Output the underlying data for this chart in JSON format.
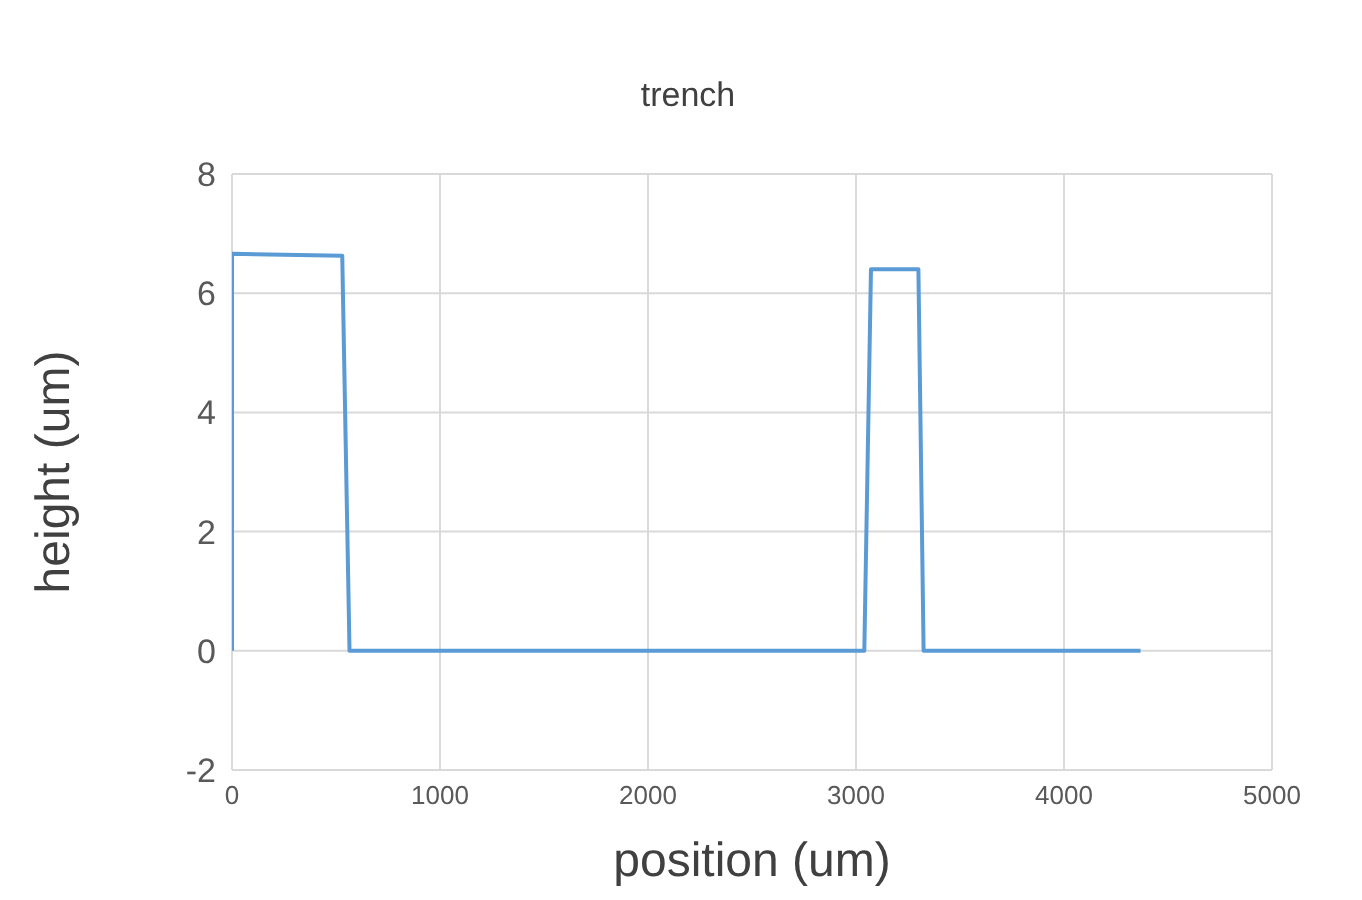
{
  "chart_data": {
    "type": "line",
    "title": "trench",
    "xlabel": "position (um)",
    "ylabel": "height  (um)",
    "series": [
      {
        "color": "#5b9bd5",
        "x": [
          0,
          0,
          530,
          565,
          3040,
          3072,
          3300,
          3325,
          4368
        ],
        "values": [
          0,
          6.66,
          6.63,
          0,
          0,
          6.4,
          6.4,
          0,
          0
        ]
      }
    ],
    "xlim": [
      0,
      5000
    ],
    "xticks": [
      0,
      1000,
      2000,
      3000,
      4000,
      5000
    ],
    "ylim": [
      -2,
      8
    ],
    "yticks": [
      -2,
      0,
      2,
      4,
      6,
      8
    ],
    "grid": true,
    "marker": "none",
    "line_style": "solid"
  }
}
